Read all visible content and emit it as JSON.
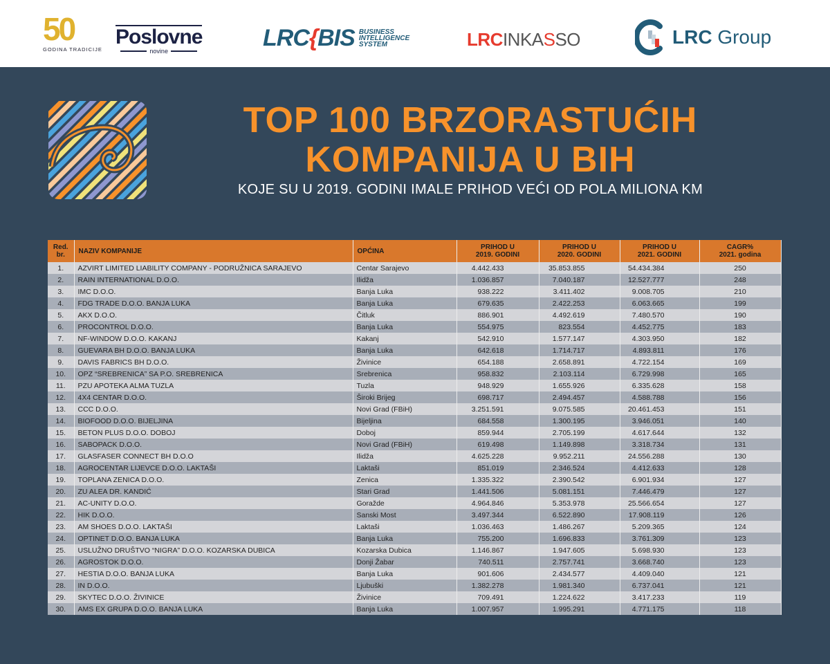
{
  "header": {
    "logos": {
      "fifty": {
        "number": "50",
        "tagline": "GODINA TRADICIJE"
      },
      "poslovne": {
        "name": "Poslovne",
        "sub": "novine"
      },
      "lrc_bis": {
        "lrc": "LRC",
        "brace": "{",
        "bis": "BIS",
        "desc_1": "BUSINESS",
        "desc_2": "INTELLIGENCE",
        "desc_3": "SYSTEM"
      },
      "lrc_inkasso": {
        "a": "LRC",
        "b1": "INKA",
        "s": "S",
        "b2": "SO"
      },
      "lrc_group": {
        "bold": "LRC",
        "rest": " Group"
      }
    }
  },
  "title": {
    "line1": "TOP 100 BRZORASTUĆIH",
    "line2": "KOMPANIJA U BIH",
    "subtitle": "KOJE SU U 2019. GODINI IMALE PRIHOD VEĆI OD POLA MILIONA KM"
  },
  "colors": {
    "background": "#33475a",
    "accent": "#f7922b",
    "header_row": "#d9782c",
    "row_light": "#d4d5d9",
    "row_dark": "#a8aeb8"
  },
  "table": {
    "columns": {
      "rank_1": "Red.",
      "rank_2": "br.",
      "name": "NAZIV KOMPANIJE",
      "municipality": "OPĆINA",
      "rev2019_1": "PRIHOD U",
      "rev2019_2": "2019. GODINI",
      "rev2020_1": "PRIHOD U",
      "rev2020_2": "2020. GODINI",
      "rev2021_1": "PRIHOD U",
      "rev2021_2": "2021. GODINI",
      "cagr_1": "CAGR%",
      "cagr_2": "2021. godina"
    },
    "rows": [
      [
        "1.",
        "AZVIRT LIMITED LIABILITY COMPANY - PODRUŽNICA SARAJEVO",
        "Centar Sarajevo",
        "4.442.433",
        "35.853.855",
        "54.434.384",
        "250"
      ],
      [
        "2.",
        "RAIN INTERNATIONAL D.O.O.",
        "Ilidža",
        "1.036.857",
        "7.040.187",
        "12.527.777",
        "248"
      ],
      [
        "3.",
        "IMC D.O.O.",
        "Banja Luka",
        "938.222",
        "3.411.402",
        "9.008.705",
        "210"
      ],
      [
        "4.",
        "FDG TRADE D.O.O. BANJA LUKA",
        "Banja Luka",
        "679.635",
        "2.422.253",
        "6.063.665",
        "199"
      ],
      [
        "5.",
        "AKX D.O.O.",
        "Čitluk",
        "886.901",
        "4.492.619",
        "7.480.570",
        "190"
      ],
      [
        "6.",
        "PROCONTROL D.O.O.",
        "Banja Luka",
        "554.975",
        "823.554",
        "4.452.775",
        "183"
      ],
      [
        "7.",
        "NF-WINDOW D.O.O. KAKANJ",
        "Kakanj",
        "542.910",
        "1.577.147",
        "4.303.950",
        "182"
      ],
      [
        "8.",
        "GUEVARA BH D.O.O. BANJA LUKA",
        "Banja Luka",
        "642.618",
        "1.714.717",
        "4.893.811",
        "176"
      ],
      [
        "9.",
        "DAVIS FABRICS BH D.O.O.",
        "Živinice",
        "654.188",
        "2.658.891",
        "4.722.154",
        "169"
      ],
      [
        "10.",
        "OPZ “SREBRENICA” SA P.O. SREBRENICA",
        "Srebrenica",
        "958.832",
        "2.103.114",
        "6.729.998",
        "165"
      ],
      [
        "11.",
        "PZU APOTEKA ALMA TUZLA",
        "Tuzla",
        "948.929",
        "1.655.926",
        "6.335.628",
        "158"
      ],
      [
        "12.",
        "4X4 CENTAR D.O.O.",
        "Široki Brijeg",
        "698.717",
        "2.494.457",
        "4.588.788",
        "156"
      ],
      [
        "13.",
        "CCC D.O.O.",
        "Novi Grad (FBiH)",
        "3.251.591",
        "9.075.585",
        "20.461.453",
        "151"
      ],
      [
        "14.",
        "BIOFOOD D.O.O. BIJELJINA",
        "Bijeljina",
        "684.558",
        "1.300.195",
        "3.946.051",
        "140"
      ],
      [
        "15.",
        "BETON PLUS D.O.O. DOBOJ",
        "Doboj",
        "859.944",
        "2.705.199",
        "4.617.644",
        "132"
      ],
      [
        "16.",
        "SABOPACK D.O.O.",
        "Novi Grad (FBiH)",
        "619.498",
        "1.149.898",
        "3.318.734",
        "131"
      ],
      [
        "17.",
        "GLASFASER CONNECT BH D.O.O",
        "Ilidža",
        "4.625.228",
        "9.952.211",
        "24.556.288",
        "130"
      ],
      [
        "18.",
        "AGROCENTAR LIJEVCE D.O.O. LAKTAŠI",
        "Laktaši",
        "851.019",
        "2.346.524",
        "4.412.633",
        "128"
      ],
      [
        "19.",
        "TOPLANA ZENICA D.O.O.",
        "Zenica",
        "1.335.322",
        "2.390.542",
        "6.901.934",
        "127"
      ],
      [
        "20.",
        "ZU ALEA DR. KANDIĆ",
        "Stari Grad",
        "1.441.506",
        "5.081.151",
        "7.446.479",
        "127"
      ],
      [
        "21.",
        "AC-UNITY D.O.O.",
        "Goražde",
        "4.964.846",
        "5.353.978",
        "25.566.654",
        "127"
      ],
      [
        "22.",
        "HIK D.O.O.",
        "Sanski Most",
        "3.497.344",
        "6.522.890",
        "17.908.119",
        "126"
      ],
      [
        "23.",
        "AM SHOES D.O.O. LAKTAŠI",
        "Laktaši",
        "1.036.463",
        "1.486.267",
        "5.209.365",
        "124"
      ],
      [
        "24.",
        "OPTINET D.O.O. BANJA LUKA",
        "Banja Luka",
        "755.200",
        "1.696.833",
        "3.761.309",
        "123"
      ],
      [
        "25.",
        "USLUŽNO DRUŠTVO “NIGRA” D.O.O. KOZARSKA DUBICA",
        "Kozarska Dubica",
        "1.146.867",
        "1.947.605",
        "5.698.930",
        "123"
      ],
      [
        "26.",
        "AGROSTOK D.O.O.",
        "Donji Žabar",
        "740.511",
        "2.757.741",
        "3.668.740",
        "123"
      ],
      [
        "27.",
        "HESTIA D.O.O. BANJA LUKA",
        "Banja Luka",
        "901.606",
        "2.434.577",
        "4.409.040",
        "121"
      ],
      [
        "28.",
        "IN D.O.O.",
        "Ljubuški",
        "1.382.278",
        "1.981.340",
        "6.737.041",
        "121"
      ],
      [
        "29.",
        "SKYTEC D.O.O. ŽIVINICE",
        "Živinice",
        "709.491",
        "1.224.622",
        "3.417.233",
        "119"
      ],
      [
        "30.",
        "AMS EX GRUPA D.O.O. BANJA LUKA",
        "Banja Luka",
        "1.007.957",
        "1.995.291",
        "4.771.175",
        "118"
      ]
    ]
  }
}
